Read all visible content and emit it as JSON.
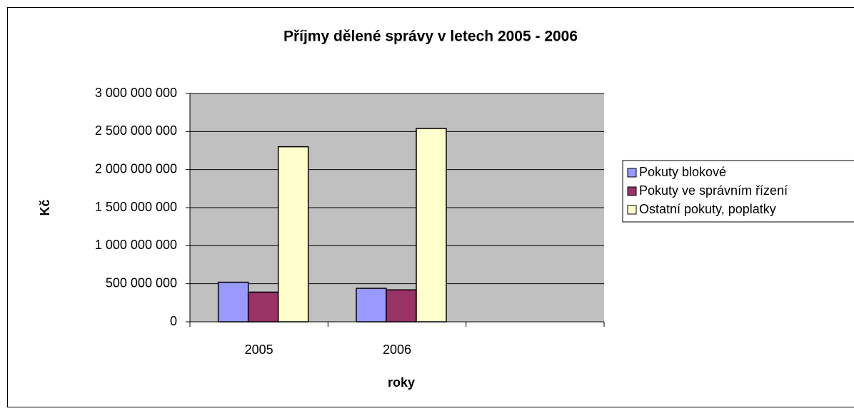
{
  "chart_data": {
    "type": "bar",
    "title": "Příjmy dělené správy v letech 2005 - 2006",
    "xlabel": "roky",
    "ylabel": "Kč",
    "categories": [
      "2005",
      "2006",
      null
    ],
    "series": [
      {
        "name": "Pokuty blokové",
        "color": "#9999ff",
        "values": [
          520000000,
          440000000,
          null
        ]
      },
      {
        "name": "Pokuty ve správním řízení",
        "color": "#993366",
        "values": [
          390000000,
          420000000,
          null
        ]
      },
      {
        "name": "Ostatní pokuty, poplatky",
        "color": "#ffffcc",
        "values": [
          2300000000,
          2540000000,
          null
        ]
      }
    ],
    "ylim": [
      0,
      3000000000
    ],
    "yticks": [
      0,
      {
        "value": 500000000,
        "label": "500 000 000"
      },
      {
        "value": 1000000000,
        "label": "1 000 000 000"
      },
      {
        "value": 1500000000,
        "label": "1 500 000 000"
      },
      {
        "value": 2000000000,
        "label": "2 000 000 000"
      },
      {
        "value": 2500000000,
        "label": "2 500 000 000"
      },
      {
        "value": 3000000000,
        "label": "3 000 000 000"
      }
    ],
    "grid": true,
    "legend": "right"
  }
}
